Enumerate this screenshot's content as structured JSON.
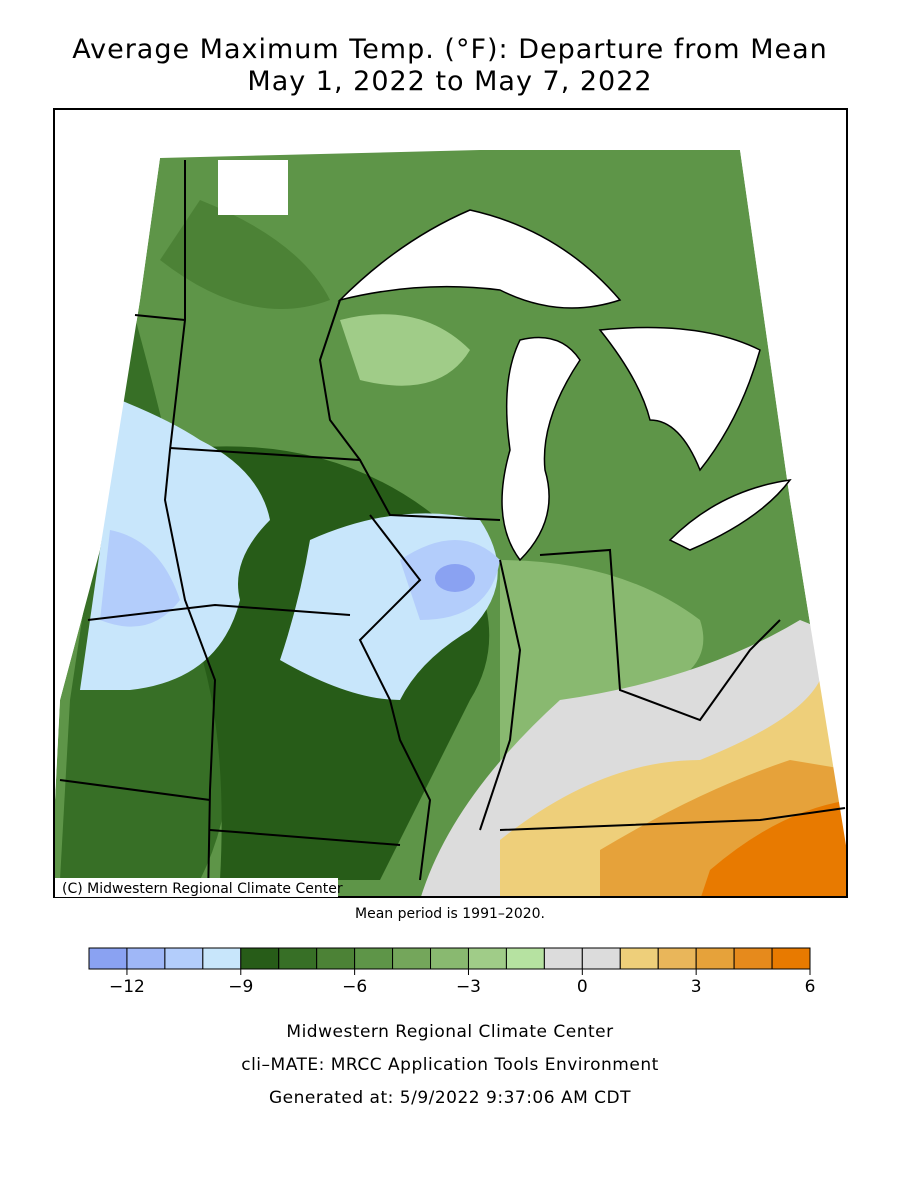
{
  "title": "Average Maximum Temp. (°F): Departure from Mean",
  "subtitle": "May 1, 2022 to May 7, 2022",
  "copyright": "(C) Midwestern Regional Climate Center",
  "mean_period": "Mean period is 1991–2020.",
  "colorbar": {
    "levels": [
      -13,
      -12,
      -11,
      -10,
      -9,
      -8,
      -7,
      -6,
      -5,
      -4,
      -3,
      -2,
      -1,
      0,
      1,
      2,
      3,
      4,
      5,
      6
    ],
    "colors": [
      "#8aa2f2",
      "#9fb7f7",
      "#b3cdfb",
      "#c8e6fb",
      "#275c18",
      "#376f26",
      "#4c8236",
      "#5e9548",
      "#74a65b",
      "#89b970",
      "#a0cc88",
      "#b6e2a1",
      "#dcdcdc",
      "#dcdcdc",
      "#eecf7a",
      "#e9b65a",
      "#e6a23a",
      "#e68a1c",
      "#e87a00"
    ],
    "ticks": [
      {
        "value": -12,
        "label": "−12"
      },
      {
        "value": -9,
        "label": "−9"
      },
      {
        "value": -6,
        "label": "−6"
      },
      {
        "value": -3,
        "label": "−3"
      },
      0,
      3,
      6
    ]
  },
  "footer": [
    "Midwestern Regional Climate Center",
    "cli–MATE: MRCC Application Tools Environment",
    "Generated at: 5/9/2022 9:37:06 AM CDT"
  ]
}
